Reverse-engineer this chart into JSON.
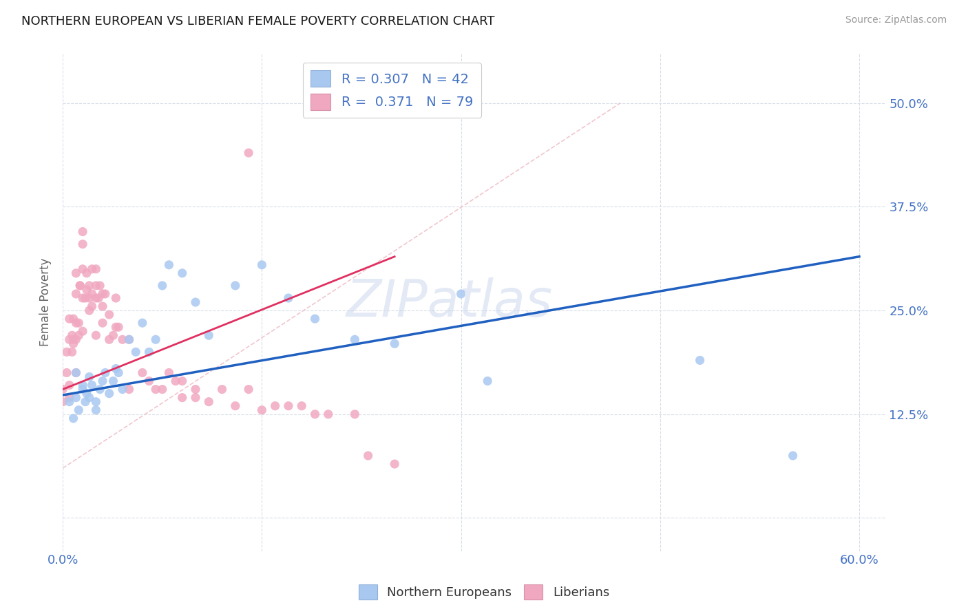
{
  "title": "NORTHERN EUROPEAN VS LIBERIAN FEMALE POVERTY CORRELATION CHART",
  "source": "Source: ZipAtlas.com",
  "ylabel": "Female Poverty",
  "ytick_values": [
    0.0,
    0.125,
    0.25,
    0.375,
    0.5
  ],
  "ytick_labels": [
    "",
    "12.5%",
    "25.0%",
    "37.5%",
    "50.0%"
  ],
  "xtick_values": [
    0.0,
    0.15,
    0.3,
    0.45,
    0.6
  ],
  "xtick_labels": [
    "0.0%",
    "",
    "",
    "",
    "60.0%"
  ],
  "xlim": [
    0.0,
    0.62
  ],
  "ylim": [
    -0.04,
    0.56
  ],
  "watermark": "ZIPatlas",
  "legend_line1": "R = 0.307   N = 42",
  "legend_line2": "R =  0.371   N = 79",
  "color_ne": "#a8c8f0",
  "color_lib": "#f0a8c0",
  "color_ne_line": "#2060c0",
  "color_lib_line": "#e03060",
  "color_dash": "#f0c0c8",
  "color_grid": "#d8dde8",
  "color_tick": "#4472c4",
  "ne_x": [
    0.005,
    0.008,
    0.01,
    0.01,
    0.012,
    0.015,
    0.015,
    0.017,
    0.018,
    0.02,
    0.02,
    0.022,
    0.025,
    0.025,
    0.028,
    0.03,
    0.032,
    0.035,
    0.038,
    0.04,
    0.042,
    0.045,
    0.05,
    0.055,
    0.06,
    0.065,
    0.07,
    0.075,
    0.08,
    0.09,
    0.1,
    0.11,
    0.13,
    0.15,
    0.17,
    0.19,
    0.22,
    0.25,
    0.3,
    0.32,
    0.48,
    0.55
  ],
  "ne_y": [
    0.14,
    0.12,
    0.175,
    0.145,
    0.13,
    0.16,
    0.155,
    0.14,
    0.15,
    0.145,
    0.17,
    0.16,
    0.13,
    0.14,
    0.155,
    0.165,
    0.175,
    0.15,
    0.165,
    0.18,
    0.175,
    0.155,
    0.215,
    0.2,
    0.235,
    0.2,
    0.215,
    0.28,
    0.305,
    0.295,
    0.26,
    0.22,
    0.28,
    0.305,
    0.265,
    0.24,
    0.215,
    0.21,
    0.27,
    0.165,
    0.19,
    0.075
  ],
  "lib_x": [
    0.0,
    0.0,
    0.003,
    0.003,
    0.005,
    0.005,
    0.005,
    0.005,
    0.007,
    0.007,
    0.008,
    0.008,
    0.008,
    0.01,
    0.01,
    0.01,
    0.01,
    0.01,
    0.012,
    0.012,
    0.013,
    0.013,
    0.015,
    0.015,
    0.015,
    0.015,
    0.015,
    0.017,
    0.018,
    0.018,
    0.02,
    0.02,
    0.02,
    0.022,
    0.022,
    0.022,
    0.025,
    0.025,
    0.025,
    0.025,
    0.027,
    0.028,
    0.03,
    0.03,
    0.03,
    0.032,
    0.035,
    0.035,
    0.038,
    0.04,
    0.04,
    0.042,
    0.045,
    0.05,
    0.05,
    0.06,
    0.065,
    0.07,
    0.075,
    0.08,
    0.085,
    0.09,
    0.09,
    0.1,
    0.1,
    0.11,
    0.12,
    0.13,
    0.14,
    0.14,
    0.15,
    0.16,
    0.17,
    0.18,
    0.19,
    0.2,
    0.22,
    0.23,
    0.25
  ],
  "lib_y": [
    0.155,
    0.14,
    0.2,
    0.175,
    0.145,
    0.16,
    0.215,
    0.24,
    0.2,
    0.22,
    0.21,
    0.24,
    0.215,
    0.175,
    0.215,
    0.235,
    0.27,
    0.295,
    0.22,
    0.235,
    0.28,
    0.28,
    0.225,
    0.265,
    0.3,
    0.33,
    0.345,
    0.265,
    0.275,
    0.295,
    0.25,
    0.265,
    0.28,
    0.255,
    0.27,
    0.3,
    0.22,
    0.265,
    0.28,
    0.3,
    0.265,
    0.28,
    0.235,
    0.255,
    0.27,
    0.27,
    0.215,
    0.245,
    0.22,
    0.23,
    0.265,
    0.23,
    0.215,
    0.215,
    0.155,
    0.175,
    0.165,
    0.155,
    0.155,
    0.175,
    0.165,
    0.145,
    0.165,
    0.145,
    0.155,
    0.14,
    0.155,
    0.135,
    0.155,
    0.44,
    0.13,
    0.135,
    0.135,
    0.135,
    0.125,
    0.125,
    0.125,
    0.075,
    0.065
  ],
  "ne_line_x": [
    0.0,
    0.6
  ],
  "ne_line_y": [
    0.148,
    0.315
  ],
  "lib_line_x": [
    0.0,
    0.25
  ],
  "lib_line_y": [
    0.155,
    0.315
  ],
  "dash_line_x": [
    0.0,
    0.42
  ],
  "dash_line_y": [
    0.06,
    0.5
  ]
}
